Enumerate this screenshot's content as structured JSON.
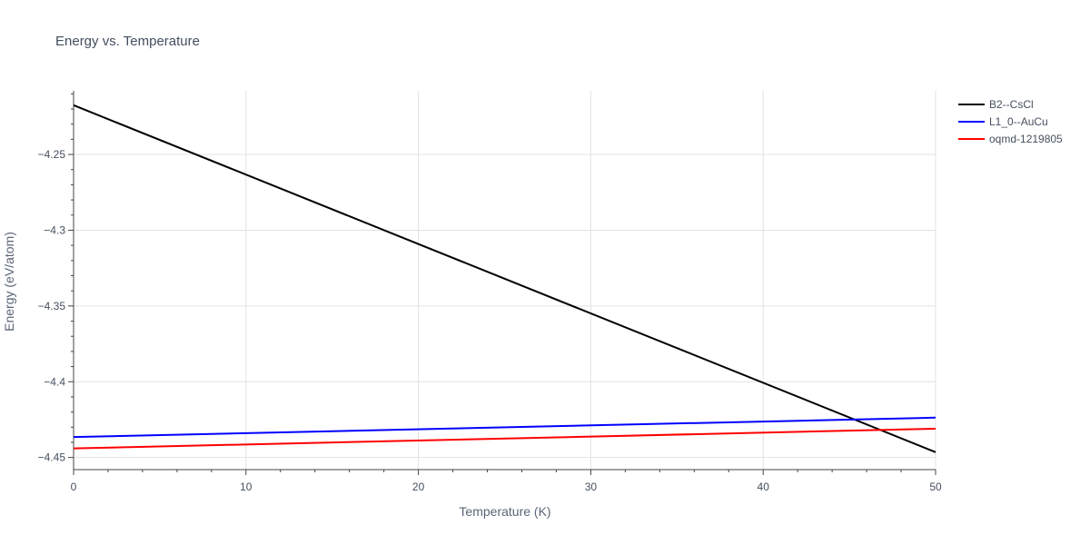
{
  "chart_data": {
    "type": "line",
    "title": "Energy vs. Temperature",
    "xlabel": "Temperature (K)",
    "ylabel": "Energy (eV/atom)",
    "xlim": [
      0,
      50
    ],
    "ylim": [
      -4.458,
      -4.208
    ],
    "xticks": [
      0,
      10,
      20,
      30,
      40,
      50
    ],
    "xtick_labels": [
      "0",
      "10",
      "20",
      "30",
      "40",
      "50"
    ],
    "yticks": [
      -4.25,
      -4.3,
      -4.35,
      -4.4,
      -4.45
    ],
    "ytick_labels": [
      "−4.25",
      "−4.3",
      "−4.35",
      "−4.4",
      "−4.45"
    ],
    "grid": true,
    "legend_position": "top-right",
    "series": [
      {
        "name": "B2--CsCl",
        "color": "#000000",
        "x": [
          0,
          50
        ],
        "y": [
          -4.2175,
          -4.4465
        ]
      },
      {
        "name": "L1_0--AuCu",
        "color": "#0000ff",
        "x": [
          0,
          50
        ],
        "y": [
          -4.4365,
          -4.4237
        ]
      },
      {
        "name": "oqmd-1219805",
        "color": "#ff0000",
        "x": [
          0,
          50
        ],
        "y": [
          -4.444,
          -4.431
        ]
      }
    ]
  }
}
